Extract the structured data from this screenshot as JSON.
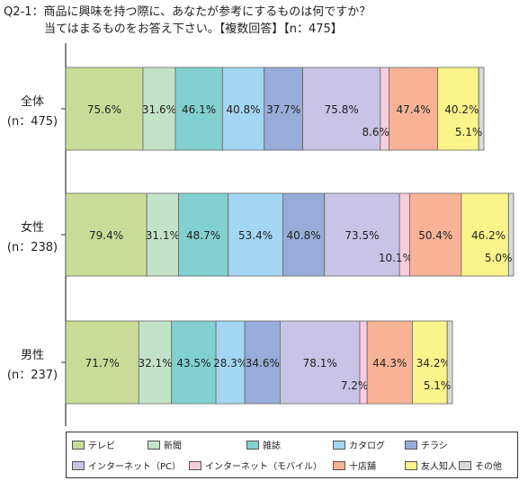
{
  "title_line1": "Q2-1：商品に興味を持つ際に、あなたが参考にするものは何ですか？",
  "title_line2": "当てはまるものをお答え下さい。【複数回答】【n：475】",
  "chart_data": {
    "type": "bar",
    "orientation": "horizontal",
    "stacked": "percent",
    "categories": [
      "全体\n(n：475)",
      "女性\n(n：238)",
      "男性\n(n：237)"
    ],
    "series": [
      {
        "name": "テレビ",
        "color": "#c9dc97",
        "values": [
          75.6,
          79.4,
          71.7
        ]
      },
      {
        "name": "新聞",
        "color": "#c3e3c9",
        "values": [
          31.6,
          31.1,
          32.1
        ]
      },
      {
        "name": "雑誌",
        "color": "#82d0d0",
        "values": [
          46.1,
          48.7,
          43.5
        ]
      },
      {
        "name": "カタログ",
        "color": "#a3d6f2",
        "values": [
          40.8,
          53.4,
          28.3
        ]
      },
      {
        "name": "チラシ",
        "color": "#97acd9",
        "values": [
          37.7,
          40.8,
          34.6
        ]
      },
      {
        "name": "インターネット（PC）",
        "color": "#c9c3e6",
        "values": [
          75.8,
          73.5,
          78.1
        ]
      },
      {
        "name": "インターネット（モバイル）",
        "color": "#f8ccdd",
        "values": [
          8.6,
          10.1,
          7.2
        ]
      },
      {
        "name": "十店舗",
        "color": "#f8b396",
        "values": [
          47.4,
          50.4,
          44.3
        ]
      },
      {
        "name": "友人知人",
        "color": "#fbf48a",
        "values": [
          40.2,
          46.2,
          34.2
        ]
      },
      {
        "name": "その他",
        "color": "#d7dbd5",
        "values": [
          5.1,
          5.0,
          5.1
        ]
      }
    ],
    "value_labels": {
      "全体": [
        "75.6%",
        "31.6%",
        "46.1%",
        "40.8%",
        "37.7%",
        "75.8%",
        "8.6%",
        "47.4%",
        "40.2%",
        "5.1%"
      ],
      "女性": [
        "79.4%",
        "31.1%",
        "48.7%",
        "53.4%",
        "40.8%",
        "73.5%",
        "10.1%",
        "50.4%",
        "46.2%",
        "5.0%"
      ],
      "男性": [
        "71.7%",
        "32.1%",
        "43.5%",
        "28.3%",
        "34.6%",
        "78.1%",
        "7.2%",
        "44.3%",
        "34.2%",
        "5.1%"
      ]
    },
    "legend_position": "bottom",
    "grid": false
  }
}
